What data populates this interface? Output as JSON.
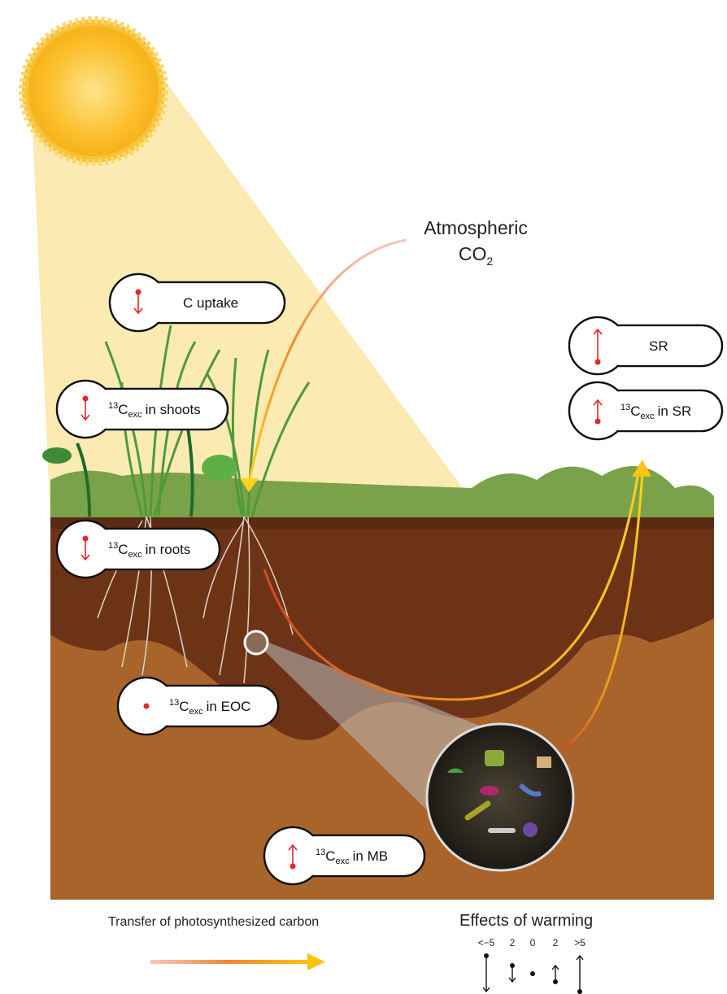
{
  "atmosphere": {
    "line1": "Atmospheric",
    "co2": {
      "base": "CO",
      "sub": "2"
    }
  },
  "badges": [
    {
      "text": "C uptake"
    },
    {
      "sup": "13",
      "base": "C",
      "sub": "exc",
      "rest": "in shoots"
    },
    {
      "sup": "13",
      "base": "C",
      "sub": "exc",
      "rest": "in roots"
    },
    {
      "sup": "13",
      "base": "C",
      "sub": "exc",
      "rest": "in EOC"
    },
    {
      "sup": "13",
      "base": "C",
      "sub": "exc",
      "rest": "in MB"
    },
    {
      "text": "SR"
    },
    {
      "sup": "13",
      "base": "C",
      "sub": "exc",
      "rest": "in SR"
    }
  ],
  "legend": {
    "transfer": "Transfer of photosynthesized carbon",
    "effects": "Effects of warming",
    "scale": [
      "<−5",
      "2",
      "0",
      "2",
      ">5"
    ]
  }
}
